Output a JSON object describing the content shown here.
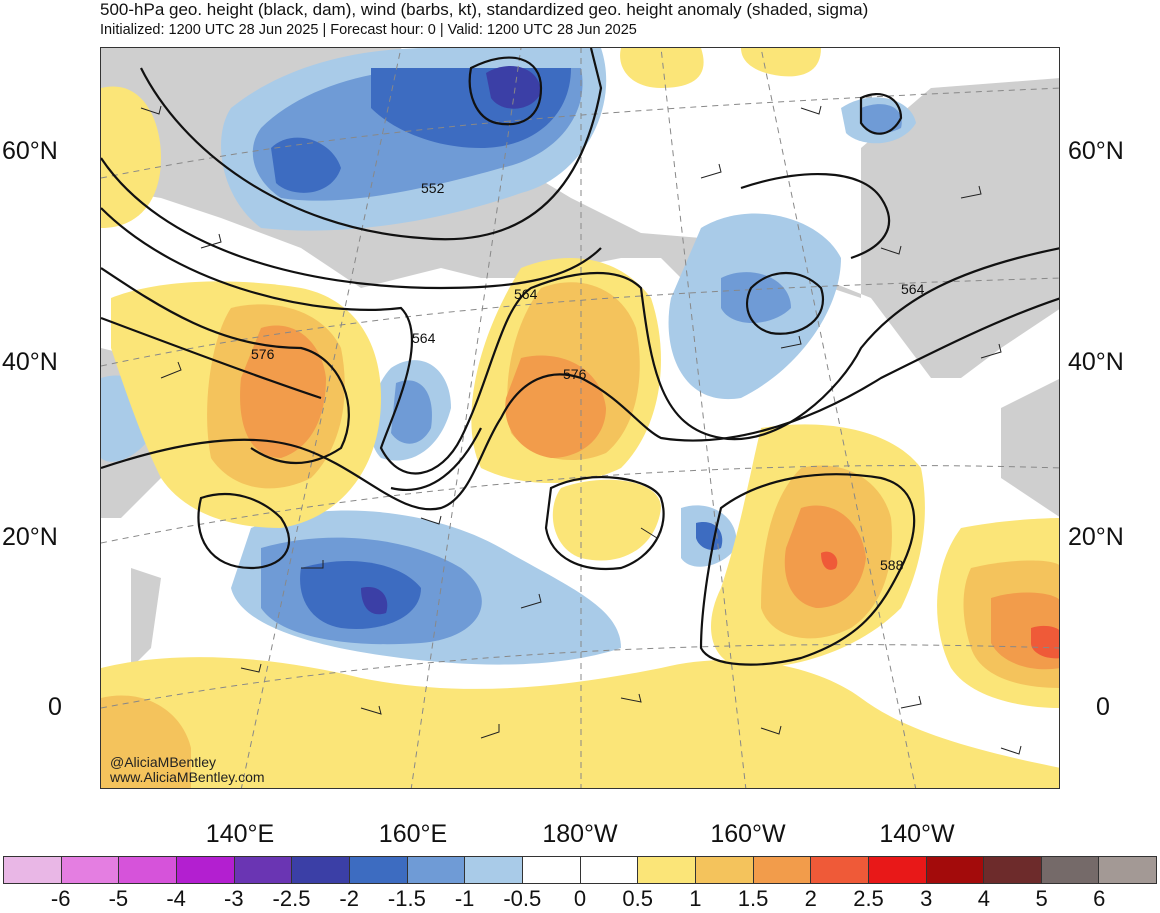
{
  "header": {
    "title": "500-hPa geo. height (black, dam), wind (barbs, kt), standardized geo. height anomaly (shaded, sigma)",
    "subtitle": "Initialized: 1200 UTC 28 Jun 2025 | Forecast hour: 0 | Valid: 1200 UTC 28 Jun 2025"
  },
  "map": {
    "lat_labels": [
      "60°N",
      "40°N",
      "20°N",
      "0"
    ],
    "lon_labels": [
      "140°E",
      "160°E",
      "180°W",
      "160°W",
      "140°W"
    ],
    "contour_labels": [
      "552",
      "564",
      "564",
      "576",
      "576",
      "564",
      "588"
    ],
    "credit": {
      "handle": "@AliciaMBentley",
      "site": "www.AliciaMBentley.com"
    }
  },
  "legend": {
    "tick_labels": [
      "-6",
      "-5",
      "-4",
      "-3",
      "-2.5",
      "-2",
      "-1.5",
      "-1",
      "-0.5",
      "0",
      "0.5",
      "1",
      "1.5",
      "2",
      "2.5",
      "3",
      "4",
      "5",
      "6"
    ],
    "colors": [
      "#e9b7e6",
      "#e47ee1",
      "#d653da",
      "#b31fd0",
      "#6a35b3",
      "#3b3fa6",
      "#3d6cc1",
      "#6f9bd6",
      "#a9cbe8",
      "#ffffff",
      "#ffffff",
      "#fbe578",
      "#f4c35c",
      "#f29c4b",
      "#ef5a38",
      "#e81818",
      "#a30b0b",
      "#6d2b2b",
      "#756a69",
      "#a39995"
    ]
  }
}
